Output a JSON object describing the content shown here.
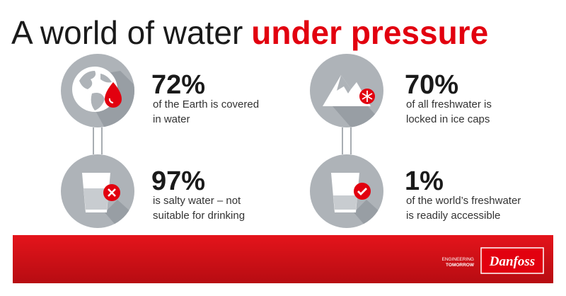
{
  "title": {
    "lead": "A world of water",
    "emphasis": "under pressure"
  },
  "stats": [
    {
      "value": "72%",
      "lines": [
        "of the Earth is covered",
        "in water"
      ]
    },
    {
      "value": "70%",
      "lines": [
        "of all freshwater is",
        "locked in ice caps"
      ]
    },
    {
      "value": "97%",
      "lines": [
        "is salty water – not",
        "suitable for drinking"
      ]
    },
    {
      "value": "1%",
      "lines": [
        "of the world’s freshwater",
        "is readily accessible"
      ]
    }
  ],
  "footer": {
    "tagline": [
      "ENGINEERING",
      "TOMORROW"
    ],
    "logo": "Danfoss"
  }
}
